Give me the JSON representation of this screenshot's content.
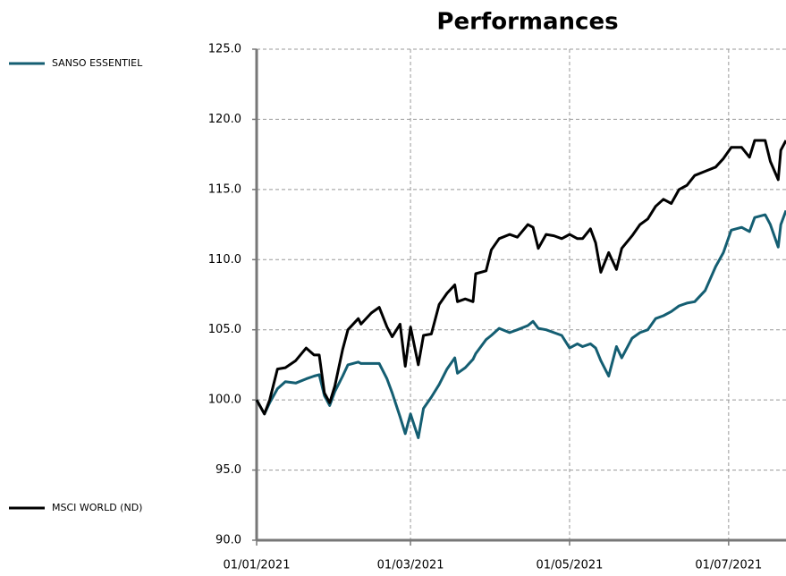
{
  "chart_data": {
    "type": "line",
    "title": "Performances",
    "x": [
      "01/01/2021",
      "04/01/2021",
      "06/01/2021",
      "09/01/2021",
      "12/01/2021",
      "16/01/2021",
      "20/01/2021",
      "23/01/2021",
      "25/01/2021",
      "27/01/2021",
      "29/01/2021",
      "31/01/2021",
      "03/02/2021",
      "05/02/2021",
      "09/02/2021",
      "10/02/2021",
      "14/02/2021",
      "17/02/2021",
      "20/02/2021",
      "22/02/2021",
      "25/02/2021",
      "27/02/2021",
      "01/03/2021",
      "04/03/2021",
      "06/03/2021",
      "09/03/2021",
      "12/03/2021",
      "15/03/2021",
      "18/03/2021",
      "19/03/2021",
      "22/03/2021",
      "25/03/2021",
      "26/03/2021",
      "30/03/2021",
      "01/04/2021",
      "04/04/2021",
      "08/04/2021",
      "11/04/2021",
      "15/04/2021",
      "17/04/2021",
      "19/04/2021",
      "22/04/2021",
      "25/04/2021",
      "28/04/2021",
      "01/05/2021",
      "04/05/2021",
      "06/05/2021",
      "09/05/2021",
      "11/05/2021",
      "13/05/2021",
      "16/05/2021",
      "19/05/2021",
      "21/05/2021",
      "25/05/2021",
      "28/05/2021",
      "31/05/2021",
      "03/06/2021",
      "06/06/2021",
      "09/06/2021",
      "12/06/2021",
      "15/06/2021",
      "18/06/2021",
      "22/06/2021",
      "26/06/2021",
      "29/06/2021",
      "02/07/2021",
      "06/07/2021",
      "09/07/2021",
      "11/07/2021",
      "15/07/2021",
      "17/07/2021",
      "20/07/2021",
      "21/07/2021",
      "23/07/2021"
    ],
    "series": [
      {
        "name": "SANSO ESSENTIEL",
        "color": "#145e72",
        "values": [
          100,
          99.0,
          99.8,
          100.8,
          101.3,
          101.2,
          101.5,
          101.7,
          101.8,
          100.3,
          99.6,
          100.6,
          101.7,
          102.5,
          102.7,
          102.6,
          102.6,
          102.6,
          101.5,
          100.5,
          98.8,
          97.6,
          99.0,
          97.3,
          99.4,
          100.2,
          101.1,
          102.2,
          103.0,
          101.9,
          102.3,
          102.9,
          103.3,
          104.3,
          104.6,
          105.1,
          104.8,
          105.0,
          105.3,
          105.6,
          105.1,
          105.0,
          104.8,
          104.6,
          103.7,
          104.0,
          103.8,
          104.0,
          103.7,
          102.8,
          101.7,
          103.8,
          103.0,
          104.4,
          104.8,
          105.0,
          105.8,
          106.0,
          106.3,
          106.7,
          106.9,
          107.0,
          107.8,
          109.5,
          110.5,
          112.1,
          112.3,
          112.0,
          113.0,
          113.2,
          112.5,
          110.9,
          112.5,
          113.5
        ]
      },
      {
        "name": "MSCI WORLD (ND)",
        "color": "#000000",
        "values": [
          100,
          99.0,
          100,
          102.2,
          102.3,
          102.8,
          103.7,
          103.2,
          103.2,
          100.5,
          99.8,
          101,
          103.6,
          105,
          105.8,
          105.4,
          106.2,
          106.6,
          105.2,
          104.5,
          105.4,
          102.4,
          105.2,
          102.5,
          104.6,
          104.7,
          106.8,
          107.6,
          108.2,
          107.0,
          107.2,
          107.0,
          109,
          109.2,
          110.7,
          111.5,
          111.8,
          111.6,
          112.5,
          112.3,
          110.8,
          111.8,
          111.7,
          111.5,
          111.8,
          111.5,
          111.5,
          112.2,
          111.2,
          109.1,
          110.5,
          109.3,
          110.8,
          111.7,
          112.5,
          112.9,
          113.8,
          114.3,
          114.0,
          115.0,
          115.3,
          116,
          116.3,
          116.6,
          117.2,
          118.0,
          118,
          117.3,
          118.5,
          118.5,
          117.0,
          115.7,
          117.8,
          118.5
        ]
      }
    ],
    "xlim": [
      "01/01/2021",
      "23/07/2021"
    ],
    "xticks": [
      "01/01/2021",
      "01/03/2021",
      "01/05/2021",
      "01/07/2021"
    ],
    "ylim": [
      90,
      125
    ],
    "yticks": [
      {
        "value": 90,
        "label": "90.0"
      },
      {
        "value": 95,
        "label": "95.0"
      },
      {
        "value": 100,
        "label": "100.0"
      },
      {
        "value": 105,
        "label": "105.0"
      },
      {
        "value": 110,
        "label": "110.0"
      },
      {
        "value": 115,
        "label": "115.0"
      },
      {
        "value": 120,
        "label": "120.0"
      },
      {
        "value": 125,
        "label": "125.0"
      }
    ],
    "grid": true
  }
}
